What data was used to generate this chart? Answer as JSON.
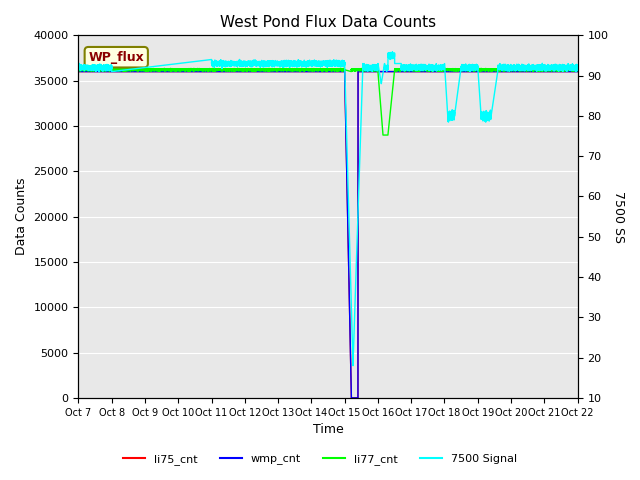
{
  "title": "West Pond Flux Data Counts",
  "xlabel": "Time",
  "ylabel_left": "Data Counts",
  "ylabel_right": "7500 SS",
  "annotation": "WP_flux",
  "xlim_days": [
    0,
    15
  ],
  "ylim_left": [
    0,
    40000
  ],
  "ylim_right": [
    10,
    100
  ],
  "xtick_labels": [
    "Oct 7",
    "Oct 8",
    "Oct 9",
    "Oct 10",
    "Oct 11",
    "Oct 12",
    "Oct 13",
    "Oct 14",
    "Oct 15",
    "Oct 16",
    "Oct 17",
    "Oct 18",
    "Oct 19",
    "Oct 20",
    "Oct 21",
    "Oct 22"
  ],
  "bg_color": "#e8e8e8",
  "li75_color": "red",
  "wmp_color": "blue",
  "li77_color": "lime",
  "signal_color": "cyan",
  "legend_labels": [
    "li75_cnt",
    "wmp_cnt",
    "li77_cnt",
    "7500 Signal"
  ]
}
